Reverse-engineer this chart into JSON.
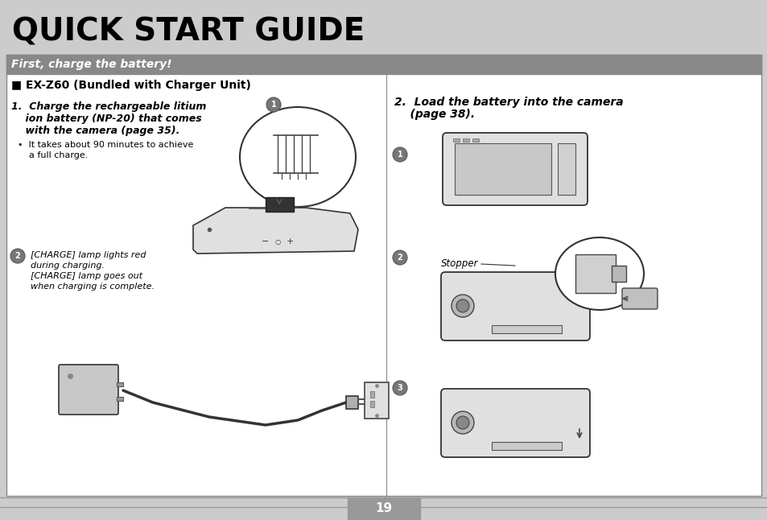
{
  "title": "QUICK START GUIDE",
  "section_header": "First, charge the battery!",
  "subsection": "■ EX-Z60 (Bundled with Charger Unit)",
  "step1_line1": "1.  Charge the rechargeable litium",
  "step1_line2": "    ion battery (NP-20) that comes",
  "step1_line3": "    with the camera (page 35).",
  "step1_bullet1": "•  It takes about 90 minutes to achieve",
  "step1_bullet2": "    a full charge.",
  "charge_line1": "[CHARGE] lamp lights red",
  "charge_line2": "during charging.",
  "charge_line3": "[CHARGE] lamp goes out",
  "charge_line4": "when charging is complete.",
  "step2_line1": "2.  Load the battery into the camera",
  "step2_line2": "    (page 38).",
  "stopper_label": "Stopper",
  "page_number": "19",
  "bg_title": "#cccccc",
  "bg_section_header": "#888888",
  "bg_main": "#ffffff",
  "bg_page_num": "#999999",
  "text_header_color": "#ffffff",
  "text_dark": "#000000",
  "border_color": "#888888",
  "title_fontsize": 28,
  "header_fontsize": 10,
  "body_fontsize": 9,
  "small_fontsize": 8
}
